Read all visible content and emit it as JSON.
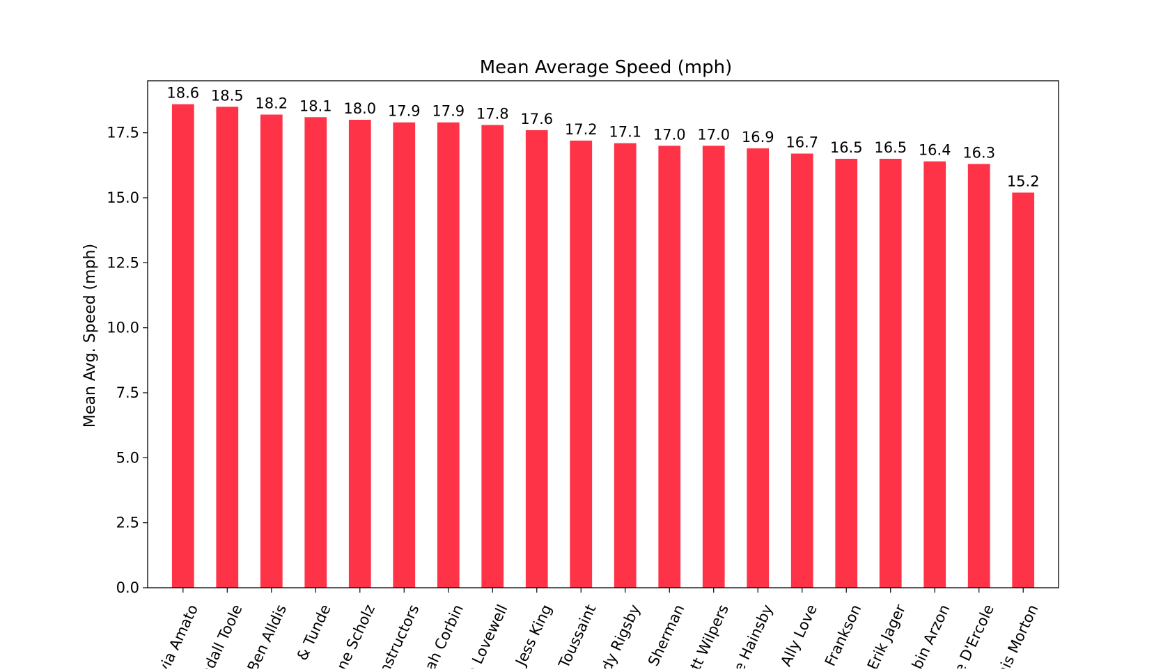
{
  "chart_data": {
    "type": "bar",
    "title": "Mean Average Speed (mph)",
    "xlabel": "",
    "ylabel": "Mean Avg. Speed (mph)",
    "ylim": [
      0,
      19.5
    ],
    "yticks": [
      0.0,
      2.5,
      5.0,
      7.5,
      10.0,
      12.5,
      15.0,
      17.5
    ],
    "ytick_labels": [
      "0.0",
      "2.5",
      "5.0",
      "7.5",
      "10.0",
      "12.5",
      "15.0",
      "17.5"
    ],
    "grid": false,
    "categories": [
      "via Amato",
      "ndall Toole",
      "Ben Alldis",
      "& Tunde",
      "ne Scholz",
      "nstructors",
      "ah Corbin",
      "a Lovewell",
      "Jess King",
      "Toussaint",
      "dy Rigsby",
      "e Sherman",
      "tt Wilpers",
      "e Hainsby",
      "Ally Love",
      "Frankson",
      "Erik Jager",
      "bin Arzon",
      "e D'Ercole",
      "nis Morton"
    ],
    "values": [
      18.6,
      18.5,
      18.2,
      18.1,
      18.0,
      17.9,
      17.9,
      17.8,
      17.6,
      17.2,
      17.1,
      17.0,
      17.0,
      16.9,
      16.7,
      16.5,
      16.5,
      16.4,
      16.3,
      15.2
    ],
    "value_labels": [
      "18.6",
      "18.5",
      "18.2",
      "18.1",
      "18.0",
      "17.9",
      "17.9",
      "17.8",
      "17.6",
      "17.2",
      "17.1",
      "17.0",
      "17.0",
      "16.9",
      "16.7",
      "16.5",
      "16.5",
      "16.4",
      "16.3",
      "15.2"
    ],
    "colors": {
      "bar": "#ff3347",
      "axis": "#000000",
      "background": "#ffffff"
    }
  }
}
